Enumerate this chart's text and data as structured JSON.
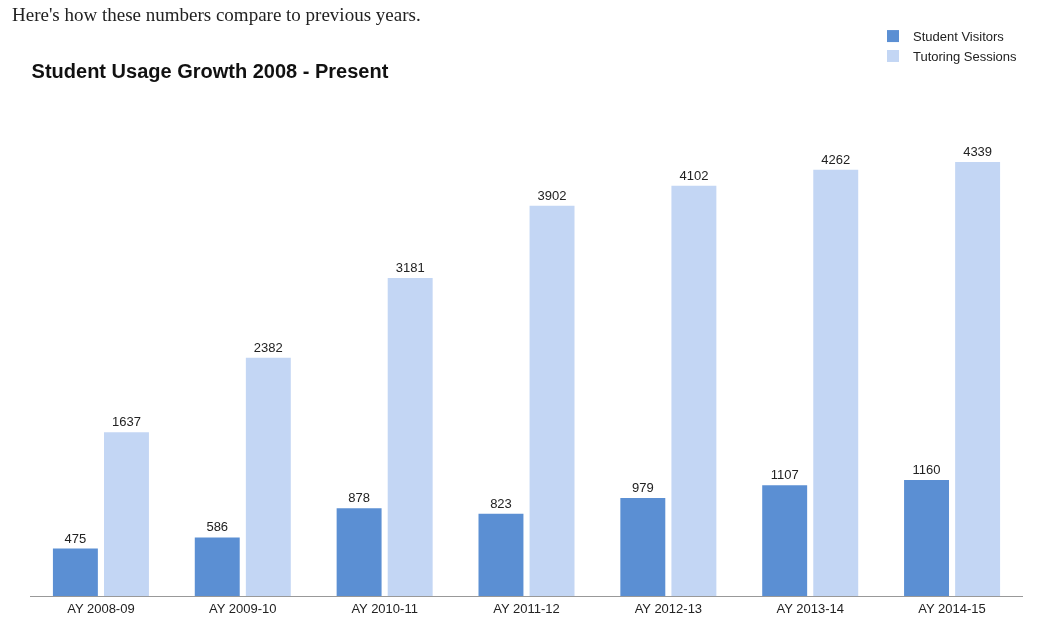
{
  "chart_data": {
    "type": "bar",
    "title": "Student Usage Growth 2008 - Present",
    "annotations": [
      "Here's how these numbers compare to previous years."
    ],
    "categories": [
      "AY 2008-09",
      "AY 2009-10",
      "AY 2010-11",
      "AY 2011-12",
      "AY 2012-13",
      "AY 2013-14",
      "AY 2014-15"
    ],
    "series": [
      {
        "name": "Student Visitors",
        "color": "#5b8fd3",
        "values": [
          475,
          586,
          878,
          823,
          979,
          1107,
          1160
        ]
      },
      {
        "name": "Tutoring Sessions",
        "color": "#c3d6f4",
        "values": [
          1637,
          2382,
          3181,
          3902,
          4102,
          4262,
          4339
        ]
      }
    ],
    "data_labels": true,
    "legend": "top right"
  }
}
